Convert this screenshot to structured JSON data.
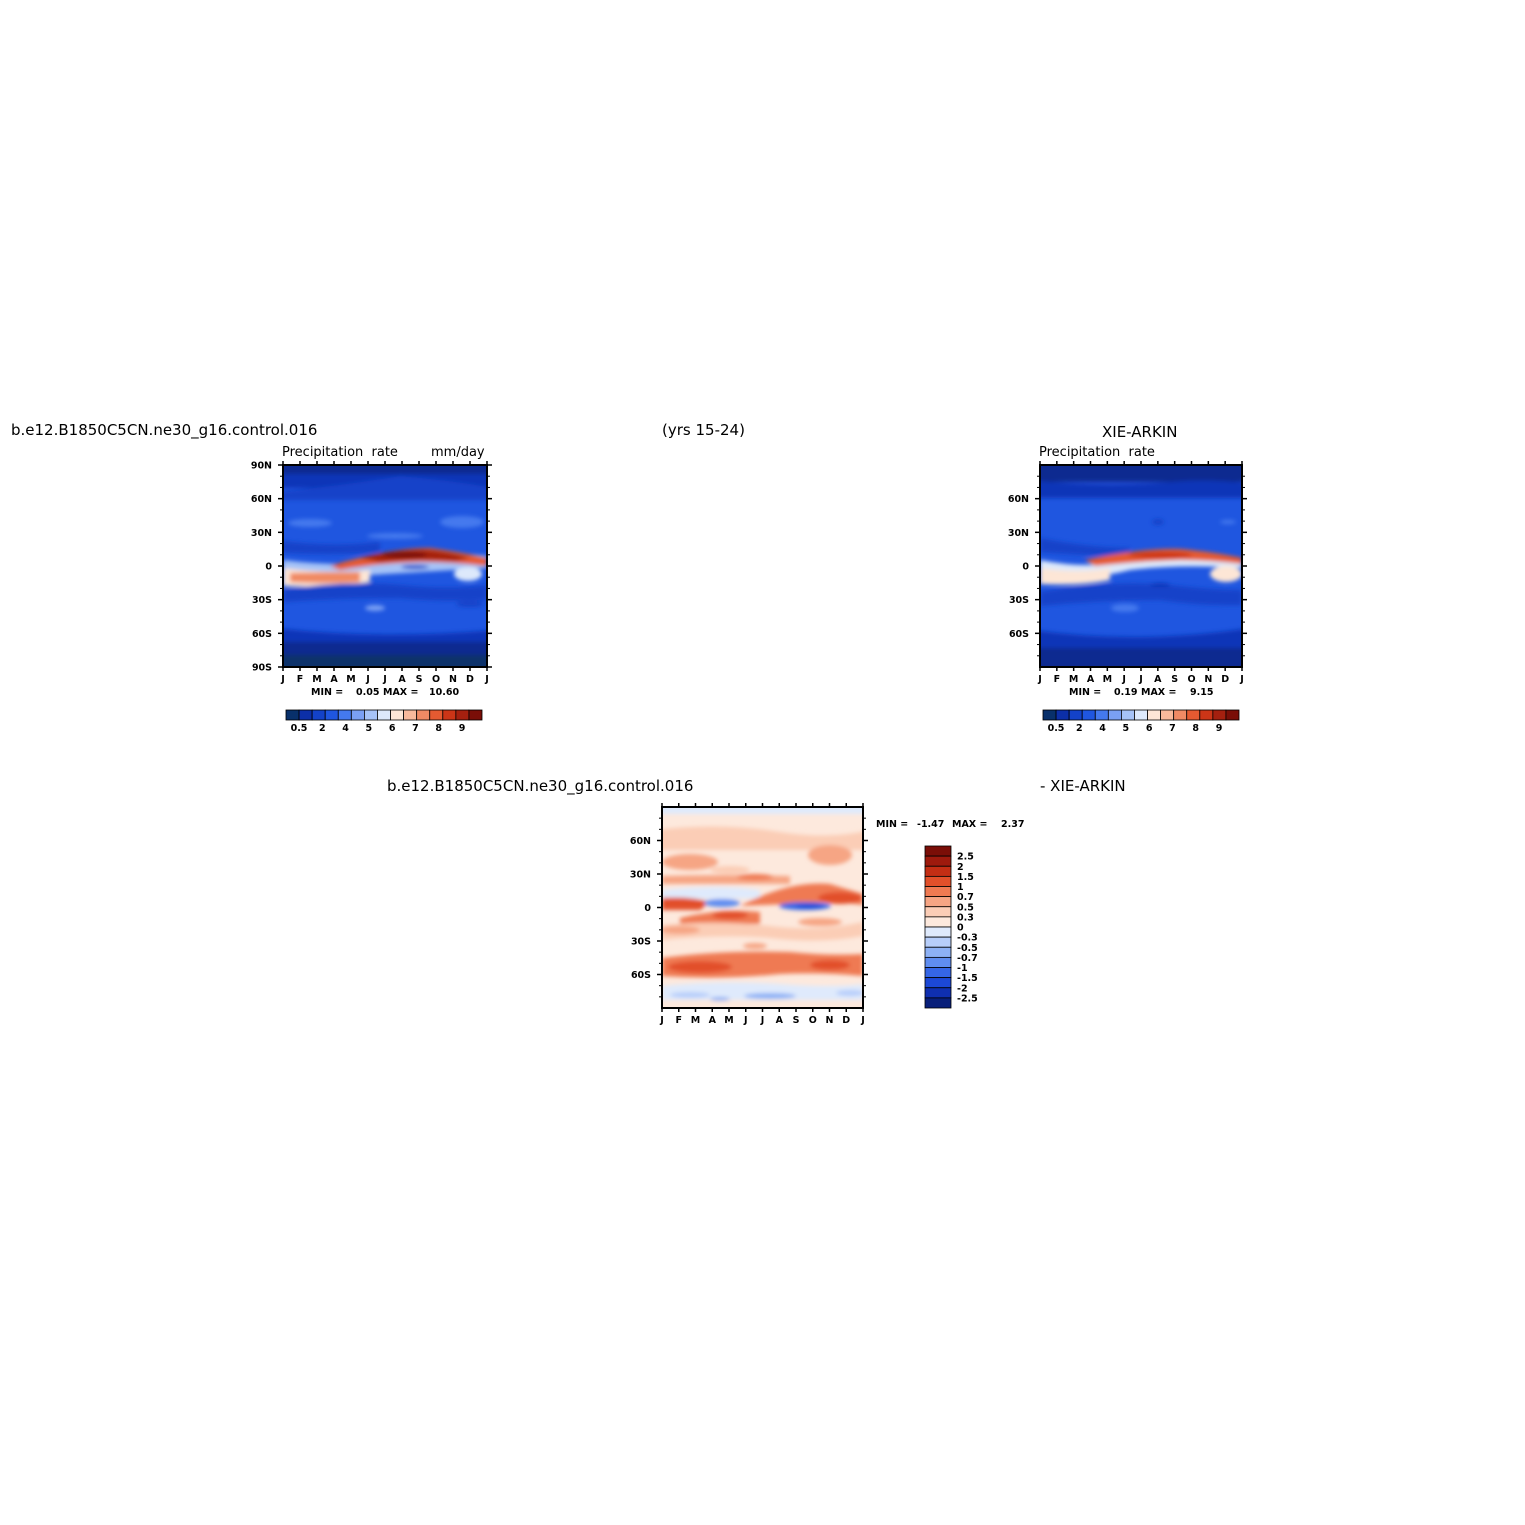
{
  "header": {
    "case_name": "b.e12.B1850C5CN.ne30_g16.control.016",
    "years": "(yrs 15-24)",
    "obs_title": "XIE-ARKIN"
  },
  "diff_title": {
    "left": "b.e12.B1850C5CN.ne30_g16.control.016",
    "right": "- XIE-ARKIN"
  },
  "colors": {
    "abs_scale": [
      "#08306b",
      "#0c2fa8",
      "#1342c9",
      "#1f56e0",
      "#4479ee",
      "#7aa0f4",
      "#a6c3f7",
      "#dde9fb",
      "#fde6d6",
      "#f8b99b",
      "#f08a64",
      "#e55a31",
      "#cc3517",
      "#a5200f",
      "#7a0e07"
    ],
    "diff_scale": [
      "#7a0e07",
      "#9e1a0d",
      "#c42e14",
      "#e2502a",
      "#ef7a52",
      "#f6a584",
      "#fbcdb6",
      "#fde9dd",
      "#dfeafc",
      "#b7cefa",
      "#8db1f5",
      "#5f8df0",
      "#3566e6",
      "#1c48d6",
      "#0f2fb0",
      "#081f7a"
    ]
  },
  "chart_data": [
    {
      "type": "heatmap",
      "title": "Precipitation  rate",
      "units": "mm/day",
      "x_ticks": [
        "J",
        "F",
        "M",
        "A",
        "M",
        "J",
        "J",
        "A",
        "S",
        "O",
        "N",
        "D",
        "J"
      ],
      "y_ticks": [
        "90N",
        "60N",
        "30N",
        "0",
        "30S",
        "60S",
        "90S"
      ],
      "ylim": [
        -90,
        90
      ],
      "min_max": {
        "min_label": "MIN =",
        "min": "0.05",
        "max_label": "MAX =",
        "max": "10.60"
      },
      "colorbar_labels": [
        "0.5",
        "2",
        "4",
        "5",
        "6",
        "7",
        "8",
        "9"
      ]
    },
    {
      "type": "heatmap",
      "title": "Precipitation  rate",
      "x_ticks": [
        "J",
        "F",
        "M",
        "A",
        "M",
        "J",
        "J",
        "A",
        "S",
        "O",
        "N",
        "D",
        "J"
      ],
      "y_ticks": [
        "60N",
        "30N",
        "0",
        "30S",
        "60S"
      ],
      "ylim": [
        -90,
        90
      ],
      "min_max": {
        "min_label": "MIN =",
        "min": "0.19",
        "max_label": "MAX =",
        "max": "9.15"
      },
      "colorbar_labels": [
        "0.5",
        "2",
        "4",
        "5",
        "6",
        "7",
        "8",
        "9"
      ]
    },
    {
      "type": "heatmap",
      "x_ticks": [
        "J",
        "F",
        "M",
        "A",
        "M",
        "J",
        "J",
        "A",
        "S",
        "O",
        "N",
        "D",
        "J"
      ],
      "y_ticks": [
        "60N",
        "30N",
        "0",
        "30S",
        "60S"
      ],
      "ylim": [
        -90,
        90
      ],
      "min_max": {
        "min_label": "MIN =",
        "min": "-1.47",
        "max_label": "MAX =",
        "max": "2.37"
      },
      "colorbar_labels": [
        "2.5",
        "2",
        "1.5",
        "1",
        "0.7",
        "0.5",
        "0.3",
        "0",
        "-0.3",
        "-0.5",
        "-0.7",
        "-1",
        "-1.5",
        "-2",
        "-2.5"
      ]
    }
  ]
}
